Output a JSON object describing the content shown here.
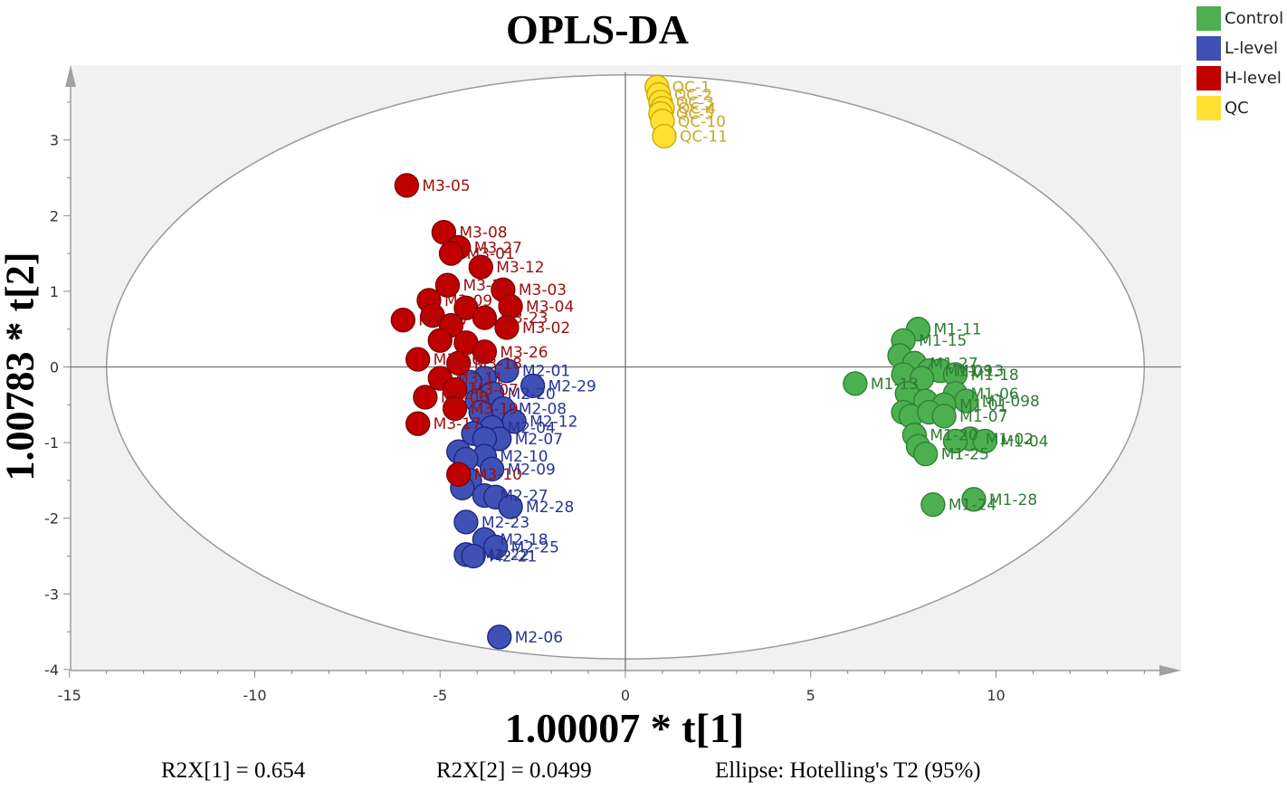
{
  "chart_data": {
    "type": "scatter",
    "title": "OPLS-DA",
    "xlabel": "1.00007 * t[1]",
    "ylabel": "1.00783 * t[2]",
    "xlim": [
      -15,
      15
    ],
    "ylim": [
      -4,
      4
    ],
    "xticks": [
      -15,
      -10,
      -5,
      0,
      5,
      10
    ],
    "yticks": [
      -4,
      -3,
      -2,
      -1,
      0,
      1,
      2,
      3
    ],
    "grid": false,
    "legend_position": "top-right",
    "ellipse": {
      "label": "Ellipse: Hotelling's T2 (95%)",
      "x_radius": 14,
      "y_radius": 3.86
    },
    "footer": [
      "R2X[1] = 0.654",
      "R2X[2] = 0.0499",
      "Ellipse: Hotelling's T2 (95%)"
    ],
    "series": [
      {
        "name": "Control",
        "color": "#4CAF50",
        "stroke": "#2E7D32",
        "label_color": "#2E7D32",
        "points": [
          {
            "x": 7.9,
            "y": 0.5,
            "label": "M1-11"
          },
          {
            "x": 7.5,
            "y": 0.35,
            "label": "M1-15"
          },
          {
            "x": 7.4,
            "y": 0.15,
            "label": ""
          },
          {
            "x": 7.8,
            "y": 0.05,
            "label": "M1-27"
          },
          {
            "x": 8.2,
            "y": -0.05,
            "label": "M1-09"
          },
          {
            "x": 8.5,
            "y": -0.05,
            "label": "M1-13"
          },
          {
            "x": 8.9,
            "y": -0.1,
            "label": "M1-18"
          },
          {
            "x": 7.5,
            "y": -0.1,
            "label": ""
          },
          {
            "x": 8.0,
            "y": -0.15,
            "label": ""
          },
          {
            "x": 6.2,
            "y": -0.22,
            "label": "M1-13"
          },
          {
            "x": 7.6,
            "y": -0.35,
            "label": ""
          },
          {
            "x": 8.1,
            "y": -0.45,
            "label": ""
          },
          {
            "x": 8.9,
            "y": -0.35,
            "label": "M1-06"
          },
          {
            "x": 9.2,
            "y": -0.45,
            "label": "M1-098"
          },
          {
            "x": 8.6,
            "y": -0.5,
            "label": "M1-01"
          },
          {
            "x": 7.5,
            "y": -0.6,
            "label": ""
          },
          {
            "x": 7.7,
            "y": -0.65,
            "label": ""
          },
          {
            "x": 8.2,
            "y": -0.6,
            "label": ""
          },
          {
            "x": 8.6,
            "y": -0.65,
            "label": "M1-07"
          },
          {
            "x": 7.8,
            "y": -0.9,
            "label": "M1-20"
          },
          {
            "x": 9.3,
            "y": -0.95,
            "label": "M1-02"
          },
          {
            "x": 9.7,
            "y": -0.98,
            "label": "M1-04"
          },
          {
            "x": 8.9,
            "y": -0.98,
            "label": ""
          },
          {
            "x": 7.9,
            "y": -1.05,
            "label": ""
          },
          {
            "x": 8.1,
            "y": -1.15,
            "label": "M1-25"
          },
          {
            "x": 9.4,
            "y": -1.75,
            "label": "M1-28"
          },
          {
            "x": 8.3,
            "y": -1.82,
            "label": "M1-24"
          }
        ]
      },
      {
        "name": "L-level",
        "color": "#3F51B5",
        "stroke": "#1A237E",
        "label_color": "#283593",
        "points": [
          {
            "x": -3.2,
            "y": -0.05,
            "label": "M2-01"
          },
          {
            "x": -2.5,
            "y": -0.25,
            "label": "M2-29"
          },
          {
            "x": -3.8,
            "y": -0.15,
            "label": ""
          },
          {
            "x": -4.2,
            "y": -0.2,
            "label": ""
          },
          {
            "x": -3.6,
            "y": -0.35,
            "label": "M2-20"
          },
          {
            "x": -4.0,
            "y": -0.45,
            "label": ""
          },
          {
            "x": -3.3,
            "y": -0.55,
            "label": "M2-08"
          },
          {
            "x": -3.9,
            "y": -0.6,
            "label": ""
          },
          {
            "x": -3.0,
            "y": -0.72,
            "label": "M2-12"
          },
          {
            "x": -3.6,
            "y": -0.8,
            "label": "M2-04"
          },
          {
            "x": -4.1,
            "y": -0.88,
            "label": ""
          },
          {
            "x": -3.4,
            "y": -0.95,
            "label": "M2-07"
          },
          {
            "x": -3.8,
            "y": -0.95,
            "label": ""
          },
          {
            "x": -4.5,
            "y": -1.12,
            "label": ""
          },
          {
            "x": -3.8,
            "y": -1.18,
            "label": "M2-10"
          },
          {
            "x": -4.3,
            "y": -1.22,
            "label": ""
          },
          {
            "x": -3.6,
            "y": -1.35,
            "label": "M2-09"
          },
          {
            "x": -4.2,
            "y": -1.5,
            "label": ""
          },
          {
            "x": -4.4,
            "y": -1.6,
            "label": ""
          },
          {
            "x": -3.8,
            "y": -1.7,
            "label": "M2-27"
          },
          {
            "x": -3.5,
            "y": -1.72,
            "label": ""
          },
          {
            "x": -3.1,
            "y": -1.85,
            "label": "M2-28"
          },
          {
            "x": -4.3,
            "y": -2.05,
            "label": "M2-23"
          },
          {
            "x": -3.8,
            "y": -2.28,
            "label": "M2-18"
          },
          {
            "x": -3.5,
            "y": -2.38,
            "label": "M2-25"
          },
          {
            "x": -4.3,
            "y": -2.48,
            "label": "M2-22"
          },
          {
            "x": -4.1,
            "y": -2.5,
            "label": "M2-21"
          },
          {
            "x": -3.4,
            "y": -3.57,
            "label": "M2-06"
          }
        ]
      },
      {
        "name": "H-level",
        "color": "#C00000",
        "stroke": "#7A0000",
        "label_color": "#9A1010",
        "points": [
          {
            "x": -5.9,
            "y": 2.4,
            "label": "M3-05"
          },
          {
            "x": -4.9,
            "y": 1.78,
            "label": "M3-08"
          },
          {
            "x": -4.5,
            "y": 1.58,
            "label": "M3-27"
          },
          {
            "x": -4.7,
            "y": 1.5,
            "label": "M3-01"
          },
          {
            "x": -3.9,
            "y": 1.32,
            "label": "M3-12"
          },
          {
            "x": -4.8,
            "y": 1.08,
            "label": "M3-13"
          },
          {
            "x": -3.3,
            "y": 1.02,
            "label": "M3-03"
          },
          {
            "x": -5.3,
            "y": 0.88,
            "label": "M3-09"
          },
          {
            "x": -3.1,
            "y": 0.8,
            "label": "M3-04"
          },
          {
            "x": -4.3,
            "y": 0.78,
            "label": ""
          },
          {
            "x": -6.0,
            "y": 0.62,
            "label": "M3-20"
          },
          {
            "x": -5.2,
            "y": 0.68,
            "label": ""
          },
          {
            "x": -3.8,
            "y": 0.65,
            "label": "M3-23"
          },
          {
            "x": -4.7,
            "y": 0.55,
            "label": ""
          },
          {
            "x": -3.2,
            "y": 0.52,
            "label": "M3-02"
          },
          {
            "x": -5.0,
            "y": 0.35,
            "label": ""
          },
          {
            "x": -4.3,
            "y": 0.32,
            "label": ""
          },
          {
            "x": -3.8,
            "y": 0.2,
            "label": "M3-26"
          },
          {
            "x": -5.6,
            "y": 0.1,
            "label": "M3-16"
          },
          {
            "x": -4.5,
            "y": 0.05,
            "label": "M3-18"
          },
          {
            "x": -5.0,
            "y": -0.15,
            "label": "M3-11"
          },
          {
            "x": -4.6,
            "y": -0.3,
            "label": "M3-07"
          },
          {
            "x": -5.4,
            "y": -0.4,
            "label": "M3-06"
          },
          {
            "x": -4.6,
            "y": -0.55,
            "label": "M3-19"
          },
          {
            "x": -5.6,
            "y": -0.75,
            "label": "M3-17"
          },
          {
            "x": -4.5,
            "y": -1.42,
            "label": "M3-10"
          }
        ]
      },
      {
        "name": "QC",
        "color": "#FFE033",
        "stroke": "#C8A800",
        "label_color": "#C9A92A",
        "points": [
          {
            "x": 0.85,
            "y": 3.7,
            "label": "QC-1"
          },
          {
            "x": 0.9,
            "y": 3.6,
            "label": "QC-2"
          },
          {
            "x": 0.95,
            "y": 3.5,
            "label": "QC-3"
          },
          {
            "x": 1.0,
            "y": 3.42,
            "label": "QC-4"
          },
          {
            "x": 0.95,
            "y": 3.35,
            "label": "QC-5"
          },
          {
            "x": 1.0,
            "y": 3.25,
            "label": "QC-10"
          },
          {
            "x": 1.05,
            "y": 3.05,
            "label": "QC-11"
          }
        ]
      }
    ]
  }
}
